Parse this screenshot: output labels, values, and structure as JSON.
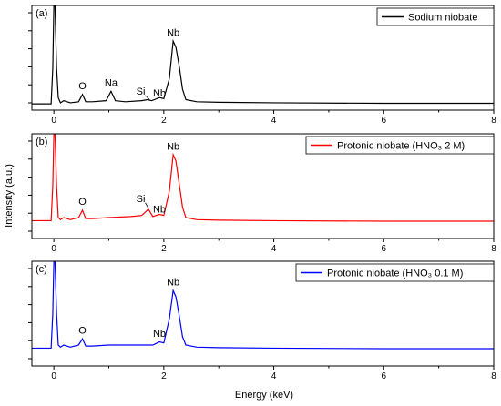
{
  "chart_data": [
    {
      "type": "line",
      "panel_label": "(a)",
      "legend": "Sodium niobate",
      "color": "#000000",
      "xlim": [
        -0.4,
        8
      ],
      "ylim": [
        0,
        1
      ],
      "xticks": [
        0,
        2,
        4,
        6,
        8
      ],
      "points": [
        [
          -0.4,
          0.06
        ],
        [
          -0.05,
          0.06
        ],
        [
          -0.02,
          0.4
        ],
        [
          0.0,
          1.0
        ],
        [
          0.02,
          1.0
        ],
        [
          0.05,
          0.4
        ],
        [
          0.08,
          0.12
        ],
        [
          0.12,
          0.07
        ],
        [
          0.18,
          0.09
        ],
        [
          0.3,
          0.07
        ],
        [
          0.45,
          0.08
        ],
        [
          0.52,
          0.15
        ],
        [
          0.58,
          0.08
        ],
        [
          0.7,
          0.08
        ],
        [
          0.95,
          0.09
        ],
        [
          1.04,
          0.18
        ],
        [
          1.12,
          0.09
        ],
        [
          1.3,
          0.08
        ],
        [
          1.6,
          0.09
        ],
        [
          1.7,
          0.1
        ],
        [
          1.78,
          0.09
        ],
        [
          1.92,
          0.12
        ],
        [
          2.0,
          0.11
        ],
        [
          2.1,
          0.3
        ],
        [
          2.17,
          0.66
        ],
        [
          2.22,
          0.6
        ],
        [
          2.28,
          0.42
        ],
        [
          2.34,
          0.2
        ],
        [
          2.4,
          0.1
        ],
        [
          2.6,
          0.08
        ],
        [
          3.0,
          0.075
        ],
        [
          4.0,
          0.07
        ],
        [
          6.0,
          0.065
        ],
        [
          8.0,
          0.065
        ]
      ],
      "annotations": [
        {
          "text": "O",
          "x": 0.52,
          "y": 0.2
        },
        {
          "text": "Na",
          "x": 1.04,
          "y": 0.23
        },
        {
          "text": "Si",
          "x": 1.58,
          "y": 0.15,
          "arrow_to": [
            1.74,
            0.1
          ]
        },
        {
          "text": "Nb",
          "x": 1.92,
          "y": 0.13
        },
        {
          "text": "Nb",
          "x": 2.17,
          "y": 0.71
        }
      ]
    },
    {
      "type": "line",
      "panel_label": "(b)",
      "legend": "Protonic niobate (HNO₃ 2 M)",
      "color": "#ff0000",
      "xlim": [
        -0.4,
        8
      ],
      "ylim": [
        0,
        1
      ],
      "xticks": [
        0,
        2,
        4,
        6,
        8
      ],
      "points": [
        [
          -0.4,
          0.17
        ],
        [
          -0.05,
          0.17
        ],
        [
          -0.02,
          0.5
        ],
        [
          0.0,
          1.0
        ],
        [
          0.02,
          1.0
        ],
        [
          0.05,
          0.5
        ],
        [
          0.08,
          0.2
        ],
        [
          0.12,
          0.18
        ],
        [
          0.18,
          0.2
        ],
        [
          0.3,
          0.18
        ],
        [
          0.45,
          0.2
        ],
        [
          0.52,
          0.27
        ],
        [
          0.58,
          0.19
        ],
        [
          0.7,
          0.19
        ],
        [
          1.0,
          0.2
        ],
        [
          1.4,
          0.21
        ],
        [
          1.6,
          0.22
        ],
        [
          1.72,
          0.28
        ],
        [
          1.8,
          0.21
        ],
        [
          1.92,
          0.23
        ],
        [
          2.0,
          0.22
        ],
        [
          2.1,
          0.45
        ],
        [
          2.17,
          0.8
        ],
        [
          2.22,
          0.74
        ],
        [
          2.28,
          0.52
        ],
        [
          2.34,
          0.3
        ],
        [
          2.4,
          0.2
        ],
        [
          2.6,
          0.18
        ],
        [
          3.0,
          0.175
        ],
        [
          4.0,
          0.17
        ],
        [
          6.0,
          0.165
        ],
        [
          8.0,
          0.165
        ]
      ],
      "annotations": [
        {
          "text": "O",
          "x": 0.52,
          "y": 0.32
        },
        {
          "text": "Si",
          "x": 1.58,
          "y": 0.35,
          "arrow_to": [
            1.72,
            0.29
          ]
        },
        {
          "text": "Nb",
          "x": 1.92,
          "y": 0.25
        },
        {
          "text": "Nb",
          "x": 2.17,
          "y": 0.85
        }
      ]
    },
    {
      "type": "line",
      "panel_label": "(c)",
      "legend": "Protonic niobate (HNO₃ 0.1 M)",
      "color": "#0000ff",
      "xlim": [
        -0.4,
        8
      ],
      "ylim": [
        0,
        1
      ],
      "xticks": [
        0,
        2,
        4,
        6,
        8
      ],
      "points": [
        [
          -0.4,
          0.17
        ],
        [
          -0.05,
          0.17
        ],
        [
          -0.02,
          0.5
        ],
        [
          0.0,
          1.0
        ],
        [
          0.02,
          1.0
        ],
        [
          0.05,
          0.5
        ],
        [
          0.08,
          0.2
        ],
        [
          0.12,
          0.18
        ],
        [
          0.18,
          0.2
        ],
        [
          0.3,
          0.18
        ],
        [
          0.45,
          0.2
        ],
        [
          0.52,
          0.26
        ],
        [
          0.58,
          0.19
        ],
        [
          0.7,
          0.19
        ],
        [
          1.0,
          0.2
        ],
        [
          1.4,
          0.2
        ],
        [
          1.6,
          0.2
        ],
        [
          1.8,
          0.2
        ],
        [
          1.92,
          0.23
        ],
        [
          2.0,
          0.22
        ],
        [
          2.1,
          0.45
        ],
        [
          2.17,
          0.72
        ],
        [
          2.22,
          0.66
        ],
        [
          2.28,
          0.48
        ],
        [
          2.34,
          0.28
        ],
        [
          2.4,
          0.2
        ],
        [
          2.6,
          0.18
        ],
        [
          3.0,
          0.175
        ],
        [
          4.0,
          0.17
        ],
        [
          6.0,
          0.165
        ],
        [
          8.0,
          0.165
        ]
      ],
      "annotations": [
        {
          "text": "O",
          "x": 0.52,
          "y": 0.31
        },
        {
          "text": "Nb",
          "x": 1.92,
          "y": 0.28
        },
        {
          "text": "Nb",
          "x": 2.17,
          "y": 0.77
        }
      ]
    }
  ],
  "axes": {
    "xlabel": "Energy (keV)",
    "ylabel": "Intensity (a.u.)"
  }
}
